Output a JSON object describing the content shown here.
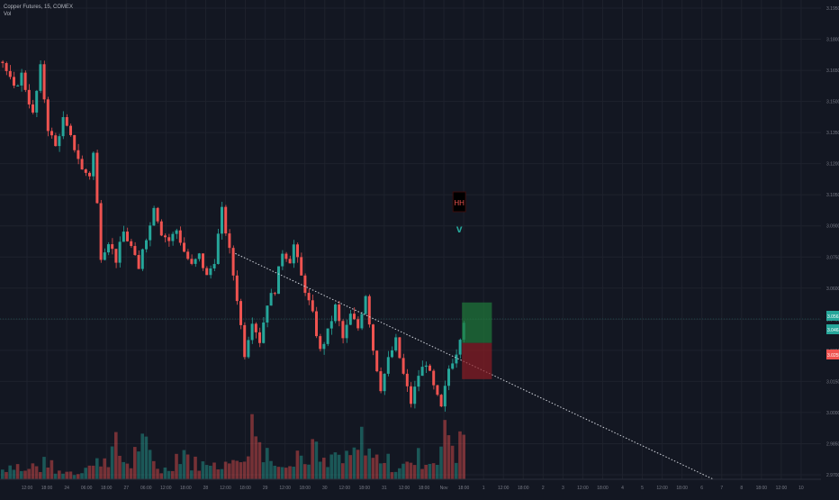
{
  "legend": {
    "symbol_line": "Copper Futures, 15, COMEX",
    "indicator": "Vol"
  },
  "chart_data": {
    "type": "candlestick",
    "title": "Copper Futures, 15, COMEX",
    "grid": true,
    "y_axis": {
      "side": "right",
      "ylim": [
        2.975,
        3.2
      ],
      "tick_labels": [
        "3.1950",
        "3.1800",
        "3.1650",
        "3.1500",
        "3.1350",
        "3.1200",
        "3.1050",
        "3.0900",
        "3.0750",
        "3.0600",
        "3.0450",
        "3.0300",
        "3.0150",
        "3.0000",
        "2.9850",
        "2.9700"
      ]
    },
    "x_axis": {
      "tick_labels": [
        "12:00",
        "18:00",
        "24",
        "06:00",
        "18:00",
        "27",
        "06:00",
        "12:00",
        "18:00",
        "28",
        "12:00",
        "18:00",
        "29",
        "12:00",
        "18:00",
        "30",
        "12:00",
        "18:00",
        "31",
        "12:00",
        "18:00",
        "Nov",
        "18:00",
        "1",
        "12:00",
        "18:00",
        "2",
        "3",
        "12:00",
        "18:00",
        "4",
        "5",
        "12:00",
        "18:00",
        "6",
        "7",
        "8",
        "18:00",
        "12:00",
        "10"
      ]
    },
    "price_path": [
      [
        0,
        3.171
      ],
      [
        3,
        3.158
      ],
      [
        5,
        3.165
      ],
      [
        8,
        3.146
      ],
      [
        10,
        3.168
      ],
      [
        12,
        3.14
      ],
      [
        14,
        3.131
      ],
      [
        16,
        3.144
      ],
      [
        18,
        3.135
      ],
      [
        20,
        3.126
      ],
      [
        21,
        3.12
      ],
      [
        23,
        3.118
      ],
      [
        24,
        3.128
      ],
      [
        26,
        3.08
      ],
      [
        28,
        3.087
      ],
      [
        30,
        3.078
      ],
      [
        32,
        3.091
      ],
      [
        34,
        3.084
      ],
      [
        36,
        3.073
      ],
      [
        37,
        3.084
      ],
      [
        39,
        3.094
      ],
      [
        40,
        3.104
      ],
      [
        42,
        3.091
      ],
      [
        44,
        3.087
      ],
      [
        46,
        3.092
      ],
      [
        48,
        3.082
      ],
      [
        50,
        3.075
      ],
      [
        52,
        3.08
      ],
      [
        54,
        3.07
      ],
      [
        56,
        3.078
      ],
      [
        58,
        3.101
      ],
      [
        60,
        3.082
      ],
      [
        62,
        3.06
      ],
      [
        64,
        3.034
      ],
      [
        66,
        3.05
      ],
      [
        68,
        3.04
      ],
      [
        70,
        3.058
      ],
      [
        72,
        3.064
      ],
      [
        74,
        3.082
      ],
      [
        76,
        3.078
      ],
      [
        77,
        3.085
      ],
      [
        79,
        3.07
      ],
      [
        82,
        3.052
      ],
      [
        84,
        3.035
      ],
      [
        86,
        3.044
      ],
      [
        88,
        3.056
      ],
      [
        90,
        3.041
      ],
      [
        92,
        3.052
      ],
      [
        94,
        3.046
      ],
      [
        96,
        3.062
      ],
      [
        98,
        3.036
      ],
      [
        100,
        3.018
      ],
      [
        102,
        3.031
      ],
      [
        104,
        3.04
      ],
      [
        106,
        3.024
      ],
      [
        108,
        3.011
      ],
      [
        110,
        3.024
      ],
      [
        112,
        3.03
      ],
      [
        114,
        3.018
      ],
      [
        116,
        3.008
      ],
      [
        118,
        3.027
      ],
      [
        120,
        3.035
      ],
      [
        122,
        3.05
      ]
    ],
    "volume_path": [
      [
        0,
        8
      ],
      [
        3,
        14
      ],
      [
        6,
        6
      ],
      [
        8,
        11
      ],
      [
        10,
        9
      ],
      [
        12,
        16
      ],
      [
        14,
        5
      ],
      [
        16,
        7
      ],
      [
        18,
        6
      ],
      [
        20,
        5
      ],
      [
        22,
        13
      ],
      [
        24,
        10
      ],
      [
        26,
        17
      ],
      [
        28,
        19
      ],
      [
        30,
        26
      ],
      [
        32,
        15
      ],
      [
        34,
        12
      ],
      [
        36,
        30
      ],
      [
        38,
        24
      ],
      [
        40,
        14
      ],
      [
        42,
        7
      ],
      [
        44,
        9
      ],
      [
        46,
        19
      ],
      [
        48,
        25
      ],
      [
        50,
        12
      ],
      [
        52,
        14
      ],
      [
        54,
        10
      ],
      [
        56,
        21
      ],
      [
        58,
        8
      ],
      [
        60,
        13
      ],
      [
        62,
        28
      ],
      [
        64,
        11
      ],
      [
        66,
        47
      ],
      [
        68,
        31
      ],
      [
        70,
        27
      ],
      [
        72,
        9
      ],
      [
        74,
        18
      ],
      [
        76,
        16
      ],
      [
        78,
        25
      ],
      [
        80,
        12
      ],
      [
        82,
        28
      ],
      [
        84,
        15
      ],
      [
        86,
        10
      ],
      [
        88,
        21
      ],
      [
        90,
        14
      ],
      [
        92,
        17
      ],
      [
        94,
        24
      ],
      [
        96,
        37
      ],
      [
        98,
        15
      ],
      [
        100,
        19
      ],
      [
        102,
        14
      ],
      [
        104,
        9
      ],
      [
        106,
        16
      ],
      [
        108,
        10
      ],
      [
        110,
        18
      ],
      [
        112,
        12
      ],
      [
        114,
        16
      ],
      [
        116,
        28
      ],
      [
        118,
        40
      ],
      [
        120,
        22
      ],
      [
        122,
        35
      ]
    ],
    "trendline": {
      "from": [
        62,
        3.081
      ],
      "to": [
        192,
        2.972
      ],
      "style": "dotted",
      "color": "#d1d4dc"
    },
    "annotation": {
      "text": "HH",
      "arrow": "v",
      "bar": 121,
      "price": 3.09
    },
    "position": {
      "entry": 3.039,
      "target": 3.058,
      "stop": 3.022,
      "bar_start": 121,
      "bar_end": 127,
      "target_color": "#1f7a3a",
      "stop_color": "#8c1d23"
    },
    "price_labels": [
      {
        "text": "3.0562",
        "color": "#26a69a"
      },
      {
        "text": "3.0463",
        "color": "#26a69a"
      },
      {
        "text": "3.0255",
        "color": "#ef5350"
      }
    ],
    "colors": {
      "up": "#26a69a",
      "down": "#ef5350",
      "background": "#131722",
      "grid": "#1e222d"
    }
  }
}
